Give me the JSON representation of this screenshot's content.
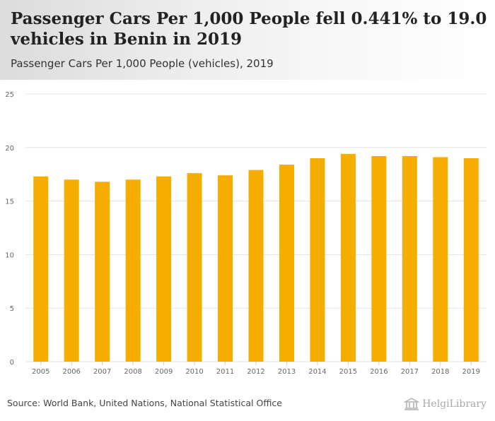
{
  "header": {
    "title": "Passenger Cars Per 1,000 People fell 0.441% to 19.0 vehicles in Benin in 2019",
    "subtitle": "Passenger Cars Per 1,000 People (vehicles), 2019"
  },
  "footer": {
    "source": "Source: World Bank, United Nations, National Statistical Office",
    "logo": "HelgiLibrary"
  },
  "colors": {
    "bar": "#f5ad00",
    "grid": "#e3e3e3",
    "axis_text": "#666666"
  },
  "chart_data": {
    "type": "bar",
    "title": "Passenger Cars Per 1,000 People (vehicles), 2019",
    "xlabel": "",
    "ylabel": "",
    "ylim": [
      0,
      25
    ],
    "yticks": [
      0,
      5,
      10,
      15,
      20,
      25
    ],
    "categories": [
      "2005",
      "2006",
      "2007",
      "2008",
      "2009",
      "2010",
      "2011",
      "2012",
      "2013",
      "2014",
      "2015",
      "2016",
      "2017",
      "2018",
      "2019"
    ],
    "values": [
      17.3,
      17.0,
      16.8,
      17.0,
      17.3,
      17.6,
      17.4,
      17.9,
      18.4,
      19.0,
      19.4,
      19.2,
      19.2,
      19.1,
      19.0
    ]
  }
}
